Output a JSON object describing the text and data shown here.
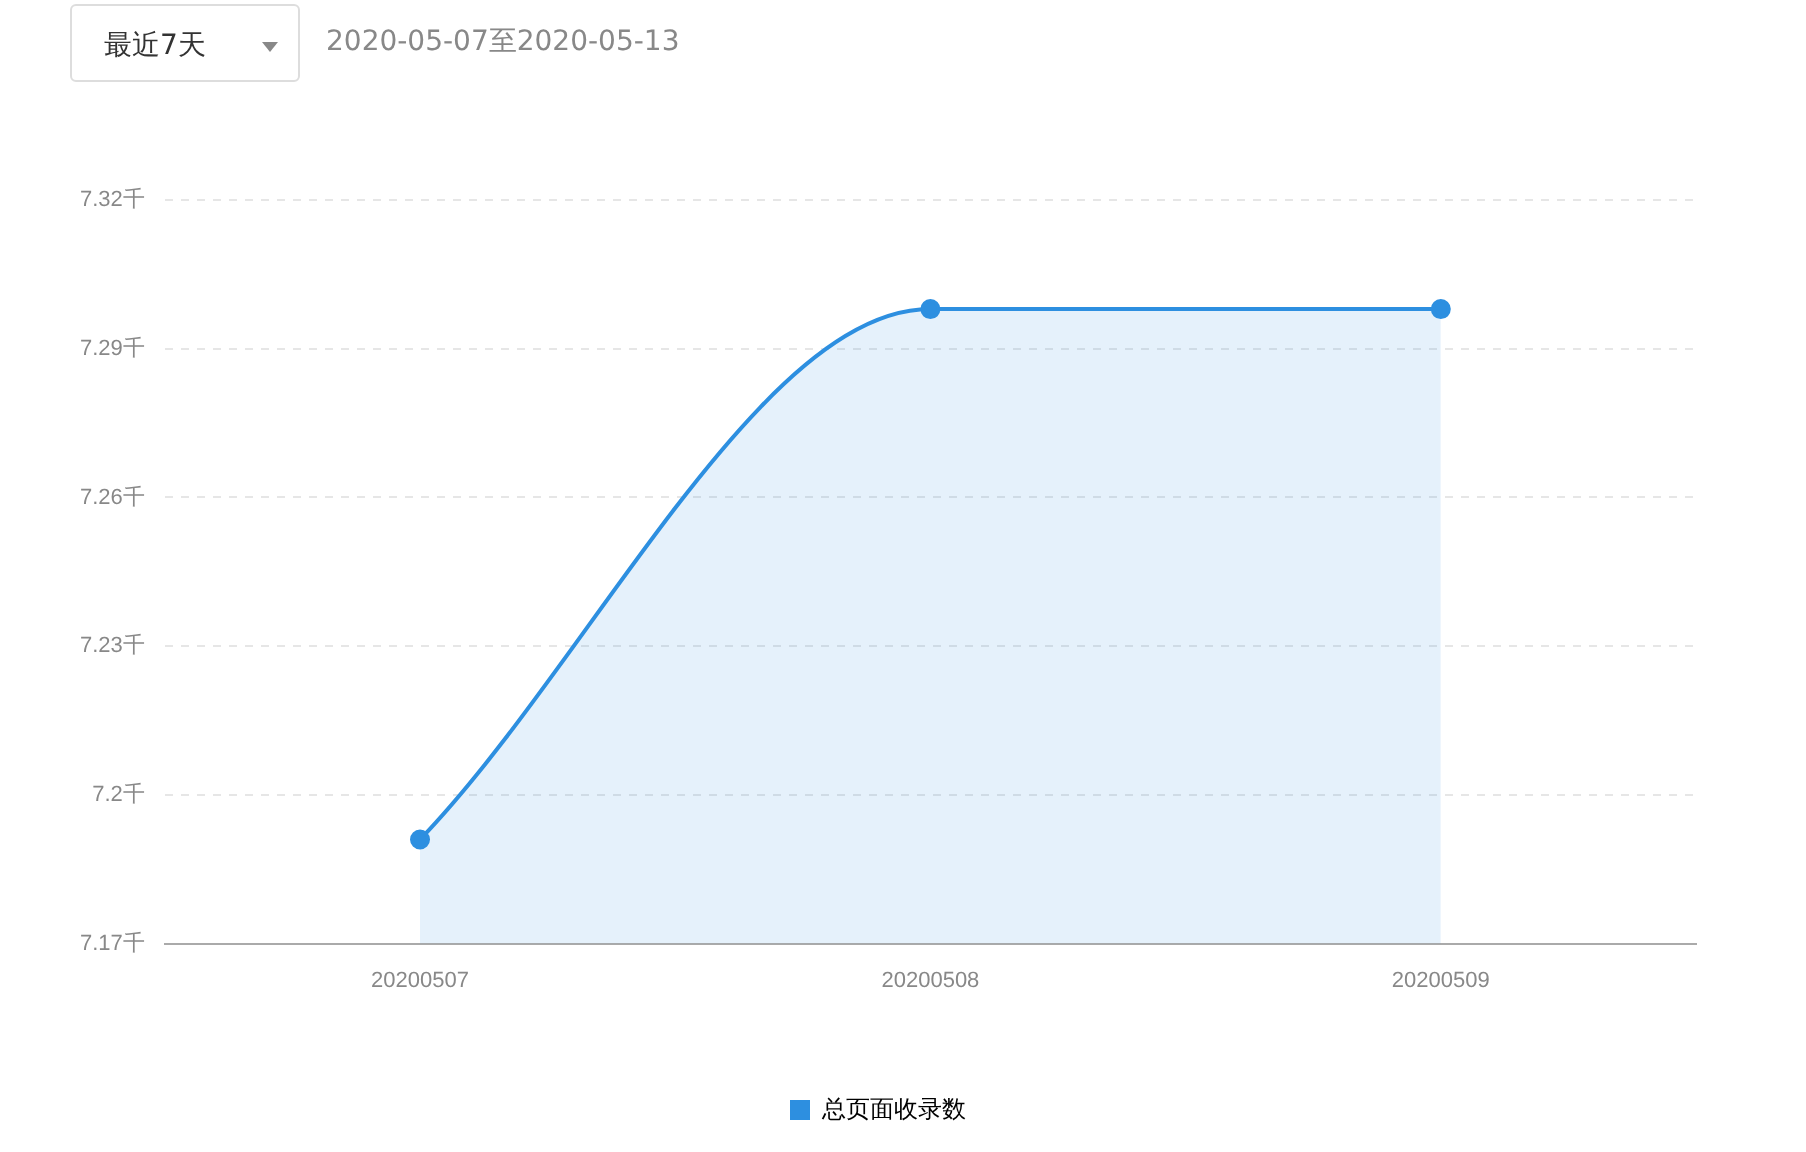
{
  "chart_data": {
    "type": "area",
    "annotations": [
      "最近7天",
      "2020-05-07至2020-05-13"
    ],
    "categories": [
      "20200507",
      "20200508",
      "20200509"
    ],
    "series": [
      {
        "name": "总页面收录数",
        "color": "#2d8fe0",
        "values": [
          7.191,
          7.298,
          7.298
        ]
      }
    ],
    "ylim": [
      7.17,
      7.32
    ],
    "yticks": [
      {
        "value": 7.17,
        "label": "7.17千"
      },
      {
        "value": 7.2,
        "label": "7.2千"
      },
      {
        "value": 7.23,
        "label": "7.23千"
      },
      {
        "value": 7.26,
        "label": "7.26千"
      },
      {
        "value": 7.29,
        "label": "7.29千"
      },
      {
        "value": 7.32,
        "label": "7.32千"
      }
    ],
    "grid": "y",
    "legend": "bottom",
    "marker": "circle",
    "line_style": "solid"
  }
}
